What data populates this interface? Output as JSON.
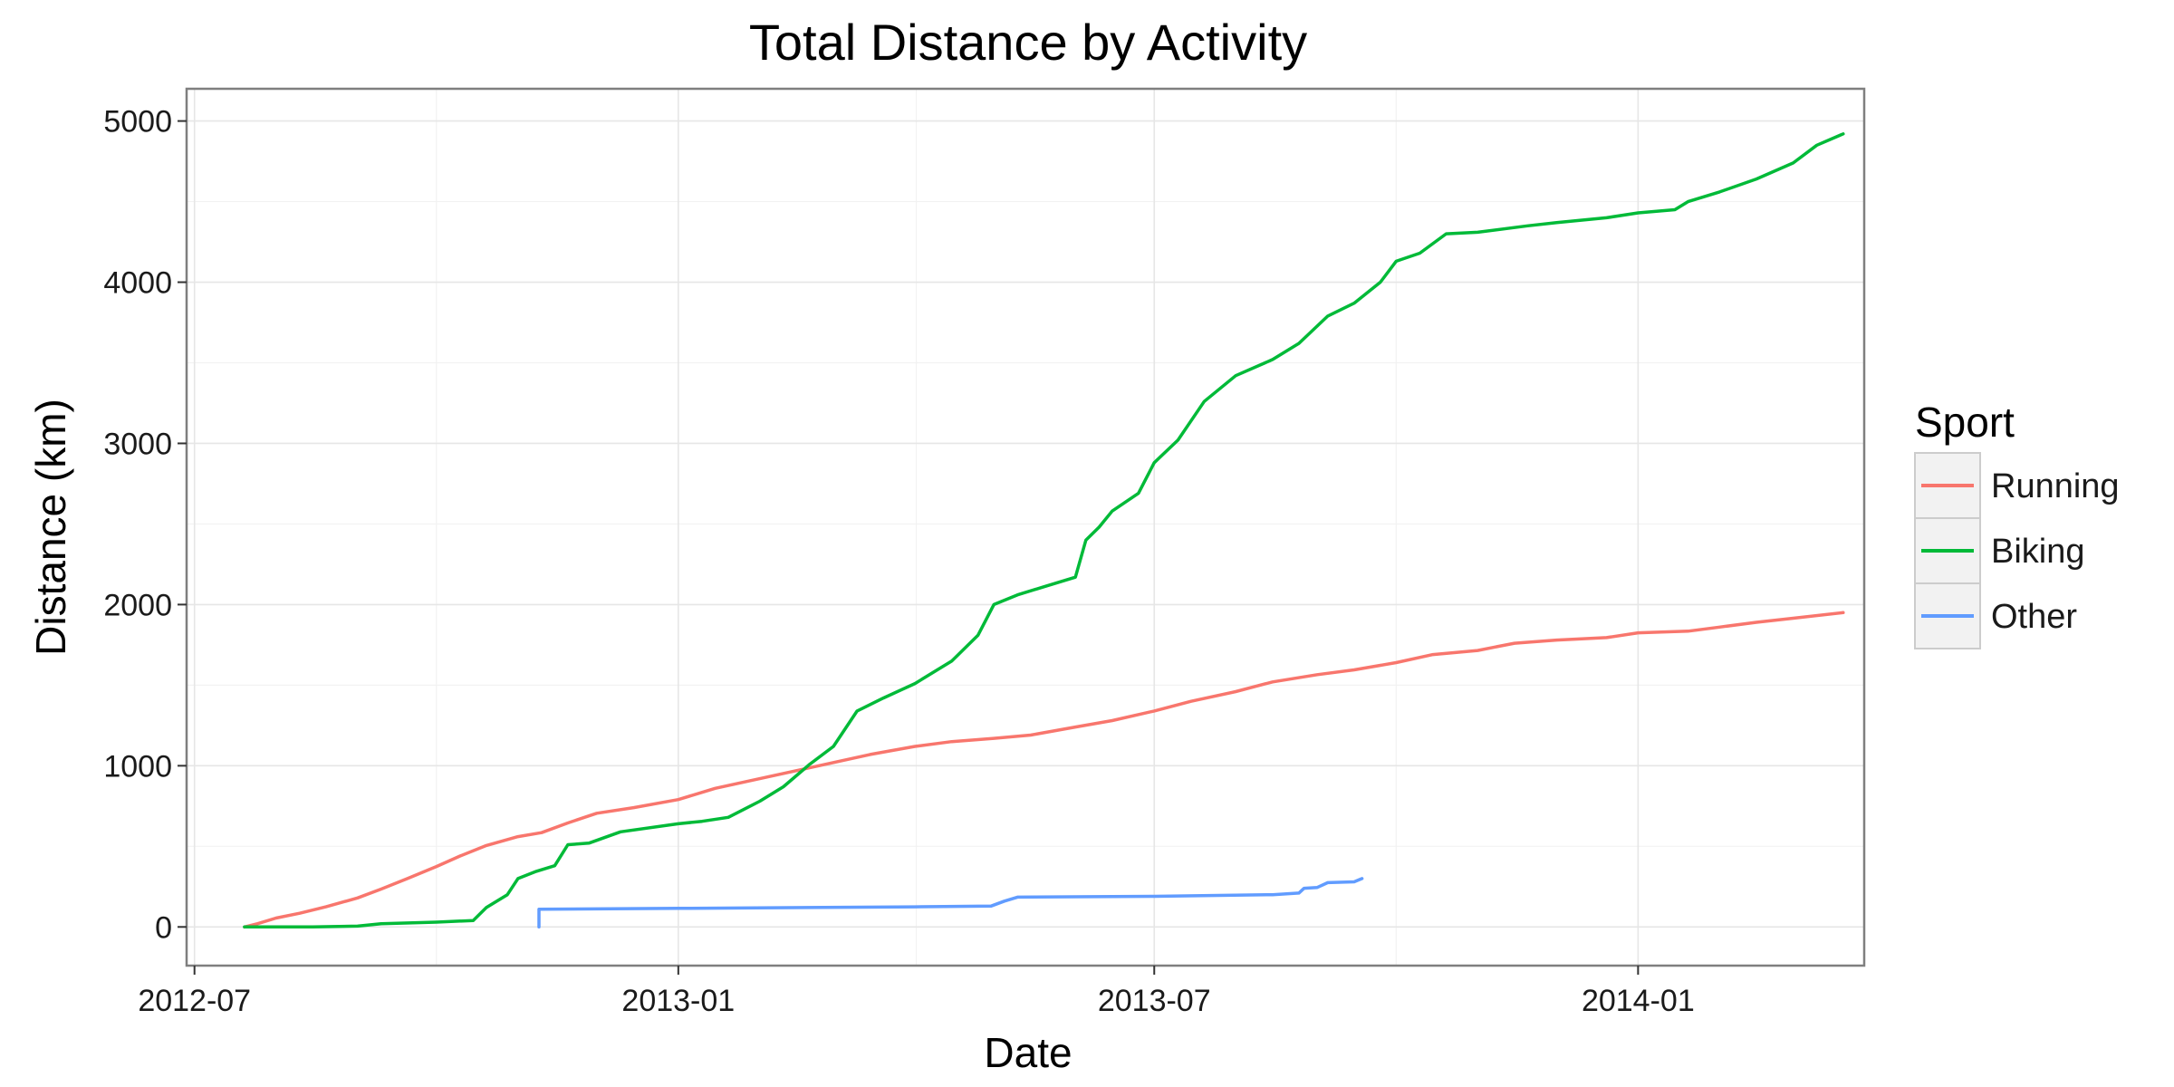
{
  "chart_data": {
    "type": "line",
    "title": "Total Distance by Activity",
    "xlabel": "Date",
    "ylabel": "Distance (km)",
    "x_scale": "date",
    "xlim": [
      "2012-06-28",
      "2014-03-28"
    ],
    "ylim": [
      -240,
      5200
    ],
    "x_ticks": [
      "2012-07-01",
      "2013-01-01",
      "2013-07-01",
      "2014-01-01"
    ],
    "x_tick_labels": [
      "2012-07",
      "2013-01",
      "2013-07",
      "2014-01"
    ],
    "y_ticks": [
      0,
      1000,
      2000,
      3000,
      4000,
      5000
    ],
    "y_tick_labels": [
      "0",
      "1000",
      "2000",
      "3000",
      "4000",
      "5000"
    ],
    "grid": true,
    "legend": {
      "title": "Sport",
      "position": "right"
    },
    "series": [
      {
        "name": "Running",
        "color": "#F8766D",
        "points": [
          [
            "2012-07-20",
            0
          ],
          [
            "2012-07-25",
            20
          ],
          [
            "2012-08-01",
            55
          ],
          [
            "2012-08-10",
            85
          ],
          [
            "2012-08-20",
            125
          ],
          [
            "2012-09-01",
            180
          ],
          [
            "2012-09-10",
            235
          ],
          [
            "2012-09-20",
            300
          ],
          [
            "2012-10-01",
            375
          ],
          [
            "2012-10-10",
            440
          ],
          [
            "2012-10-20",
            505
          ],
          [
            "2012-11-01",
            560
          ],
          [
            "2012-11-10",
            585
          ],
          [
            "2012-11-20",
            645
          ],
          [
            "2012-12-01",
            705
          ],
          [
            "2012-12-15",
            740
          ],
          [
            "2013-01-01",
            790
          ],
          [
            "2013-01-15",
            860
          ],
          [
            "2013-02-01",
            920
          ],
          [
            "2013-02-15",
            970
          ],
          [
            "2013-03-01",
            1020
          ],
          [
            "2013-03-15",
            1070
          ],
          [
            "2013-04-01",
            1120
          ],
          [
            "2013-04-15",
            1150
          ],
          [
            "2013-05-01",
            1170
          ],
          [
            "2013-05-15",
            1190
          ],
          [
            "2013-06-01",
            1240
          ],
          [
            "2013-06-15",
            1280
          ],
          [
            "2013-07-01",
            1340
          ],
          [
            "2013-07-15",
            1400
          ],
          [
            "2013-08-01",
            1460
          ],
          [
            "2013-08-15",
            1520
          ],
          [
            "2013-09-01",
            1565
          ],
          [
            "2013-09-15",
            1595
          ],
          [
            "2013-10-01",
            1640
          ],
          [
            "2013-10-15",
            1690
          ],
          [
            "2013-11-01",
            1715
          ],
          [
            "2013-11-15",
            1760
          ],
          [
            "2013-12-01",
            1780
          ],
          [
            "2013-12-20",
            1795
          ],
          [
            "2014-01-01",
            1825
          ],
          [
            "2014-01-20",
            1835
          ],
          [
            "2014-02-01",
            1860
          ],
          [
            "2014-02-15",
            1890
          ],
          [
            "2014-03-01",
            1915
          ],
          [
            "2014-03-20",
            1950
          ]
        ]
      },
      {
        "name": "Biking",
        "color": "#00BA38",
        "points": [
          [
            "2012-07-20",
            0
          ],
          [
            "2012-08-15",
            0
          ],
          [
            "2012-09-01",
            5
          ],
          [
            "2012-09-10",
            20
          ],
          [
            "2012-10-01",
            30
          ],
          [
            "2012-10-15",
            40
          ],
          [
            "2012-10-20",
            120
          ],
          [
            "2012-10-28",
            200
          ],
          [
            "2012-11-01",
            300
          ],
          [
            "2012-11-08",
            345
          ],
          [
            "2012-11-15",
            380
          ],
          [
            "2012-11-20",
            510
          ],
          [
            "2012-11-28",
            520
          ],
          [
            "2012-12-10",
            590
          ],
          [
            "2013-01-01",
            640
          ],
          [
            "2013-01-10",
            655
          ],
          [
            "2013-01-20",
            680
          ],
          [
            "2013-02-01",
            780
          ],
          [
            "2013-02-10",
            870
          ],
          [
            "2013-02-20",
            1010
          ],
          [
            "2013-03-01",
            1120
          ],
          [
            "2013-03-10",
            1340
          ],
          [
            "2013-03-20",
            1420
          ],
          [
            "2013-04-01",
            1510
          ],
          [
            "2013-04-15",
            1650
          ],
          [
            "2013-04-25",
            1810
          ],
          [
            "2013-05-01",
            2000
          ],
          [
            "2013-05-10",
            2060
          ],
          [
            "2013-05-20",
            2110
          ],
          [
            "2013-06-01",
            2170
          ],
          [
            "2013-06-05",
            2400
          ],
          [
            "2013-06-10",
            2480
          ],
          [
            "2013-06-15",
            2580
          ],
          [
            "2013-06-25",
            2690
          ],
          [
            "2013-07-01",
            2880
          ],
          [
            "2013-07-10",
            3020
          ],
          [
            "2013-07-20",
            3260
          ],
          [
            "2013-08-01",
            3420
          ],
          [
            "2013-08-15",
            3520
          ],
          [
            "2013-08-25",
            3620
          ],
          [
            "2013-09-05",
            3790
          ],
          [
            "2013-09-15",
            3870
          ],
          [
            "2013-09-25",
            4000
          ],
          [
            "2013-10-01",
            4130
          ],
          [
            "2013-10-10",
            4180
          ],
          [
            "2013-10-20",
            4300
          ],
          [
            "2013-11-01",
            4310
          ],
          [
            "2013-11-20",
            4350
          ],
          [
            "2013-12-01",
            4370
          ],
          [
            "2013-12-20",
            4400
          ],
          [
            "2014-01-01",
            4430
          ],
          [
            "2014-01-15",
            4450
          ],
          [
            "2014-01-20",
            4500
          ],
          [
            "2014-02-01",
            4560
          ],
          [
            "2014-02-15",
            4640
          ],
          [
            "2014-03-01",
            4740
          ],
          [
            "2014-03-10",
            4850
          ],
          [
            "2014-03-20",
            4920
          ]
        ]
      },
      {
        "name": "Other",
        "color": "#619CFF",
        "points": [
          [
            "2012-11-09",
            0
          ],
          [
            "2012-11-09",
            110
          ],
          [
            "2013-01-01",
            115
          ],
          [
            "2013-04-01",
            125
          ],
          [
            "2013-04-30",
            130
          ],
          [
            "2013-05-05",
            160
          ],
          [
            "2013-05-10",
            185
          ],
          [
            "2013-07-01",
            190
          ],
          [
            "2013-08-15",
            200
          ],
          [
            "2013-08-25",
            210
          ],
          [
            "2013-08-27",
            240
          ],
          [
            "2013-09-01",
            245
          ],
          [
            "2013-09-05",
            275
          ],
          [
            "2013-09-15",
            280
          ],
          [
            "2013-09-18",
            300
          ]
        ]
      }
    ]
  }
}
